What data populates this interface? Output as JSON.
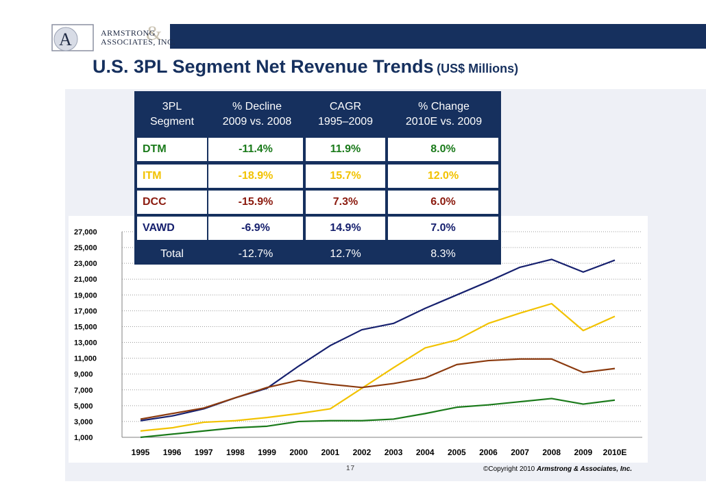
{
  "header": {
    "logo_line1": "ARMSTRONG",
    "logo_line2": "ASSOCIATES, INC.",
    "logo_amp": "&",
    "logo_letter": "A",
    "title": "U.S. 3PL Segment Net Revenue Trends",
    "title_unit": "(US$ Millions)"
  },
  "table": {
    "headers": [
      "3PL Segment",
      "% Decline 2009 vs. 2008",
      "CAGR 1995–2009",
      "% Change 2010E vs. 2009"
    ],
    "header_lines": [
      [
        "3PL",
        "Segment"
      ],
      [
        "% Decline",
        "2009 vs. 2008"
      ],
      [
        "CAGR",
        "1995–2009"
      ],
      [
        "% Change",
        "2010E vs. 2009"
      ]
    ],
    "rows": [
      {
        "segment": "DTM",
        "decline": "-11.4%",
        "cagr": "11.9%",
        "change": "8.0%",
        "color": "#1a7a1a"
      },
      {
        "segment": "ITM",
        "decline": "-18.9%",
        "cagr": "15.7%",
        "change": "12.0%",
        "color": "#f2c200"
      },
      {
        "segment": "DCC",
        "decline": "-15.9%",
        "cagr": "7.3%",
        "change": "6.0%",
        "color": "#8b1a0e"
      },
      {
        "segment": "VAWD",
        "decline": "-6.9%",
        "cagr": "14.9%",
        "change": "7.0%",
        "color": "#16206e"
      }
    ],
    "total": {
      "segment": "Total",
      "decline": "-12.7%",
      "cagr": "12.7%",
      "change": "8.3%"
    }
  },
  "chart_data": {
    "type": "line",
    "title": "",
    "xlabel": "",
    "ylabel": "",
    "categories": [
      "1995",
      "1996",
      "1997",
      "1998",
      "1999",
      "2000",
      "2001",
      "2002",
      "2003",
      "2004",
      "2005",
      "2006",
      "2007",
      "2008",
      "2009",
      "2010E"
    ],
    "yticks": [
      "1,000",
      "3,000",
      "5,000",
      "7,000",
      "9,000",
      "11,000",
      "13,000",
      "15,000",
      "17,000",
      "19,000",
      "21,000",
      "23,000",
      "25,000",
      "27,000"
    ],
    "ylim": [
      1000,
      27000
    ],
    "grid": "horizontal-dotted",
    "series": [
      {
        "name": "VAWD",
        "color": "#16206e",
        "values": [
          3100,
          3700,
          4600,
          6000,
          7200,
          10000,
          12600,
          14600,
          15400,
          17300,
          19000,
          20700,
          22500,
          23500,
          21900,
          23400
        ]
      },
      {
        "name": "ITM",
        "color": "#f2c200",
        "values": [
          1800,
          2200,
          2900,
          3100,
          3500,
          4000,
          4600,
          7200,
          9800,
          12300,
          13300,
          15400,
          16700,
          17900,
          14500,
          16300
        ]
      },
      {
        "name": "DCC",
        "color": "#8b3a0e",
        "values": [
          3300,
          4000,
          4700,
          6000,
          7300,
          8200,
          7700,
          7300,
          7800,
          8500,
          10200,
          10700,
          10900,
          10900,
          9200,
          9700
        ]
      },
      {
        "name": "DTM",
        "color": "#1a7a1a",
        "values": [
          1000,
          1400,
          1800,
          2200,
          2400,
          3000,
          3100,
          3100,
          3300,
          4000,
          4800,
          5100,
          5500,
          5900,
          5200,
          5700
        ]
      }
    ]
  },
  "footer": {
    "page_number": "17",
    "copyright": "©Copyright 2010",
    "copyright_org": "Armstrong & Associates, Inc."
  }
}
